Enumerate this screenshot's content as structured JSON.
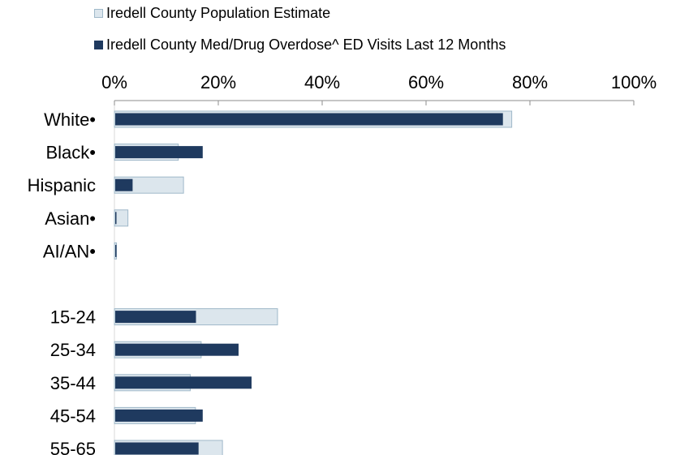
{
  "chart_data": {
    "type": "bar",
    "orientation": "horizontal",
    "title": "",
    "xlabel": "",
    "ylabel": "",
    "xlim": [
      0,
      100
    ],
    "x_ticks": [
      "0%",
      "20%",
      "40%",
      "60%",
      "80%",
      "100%"
    ],
    "x_tick_values": [
      0,
      20,
      40,
      60,
      80,
      100
    ],
    "categories": [
      "White•",
      "Black•",
      "Hispanic",
      "Asian•",
      "AI/AN•",
      "",
      "15-24",
      "25-34",
      "35-44",
      "45-54",
      "55-65"
    ],
    "legend_position": "top",
    "grid": false,
    "series": [
      {
        "name": "Iredell County Population Estimate",
        "color": "#dce6ed",
        "border": "#9fb8c9",
        "values": [
          76.5,
          12.3,
          13.3,
          2.6,
          0.4,
          null,
          31.4,
          16.7,
          14.6,
          15.6,
          20.8
        ]
      },
      {
        "name": "Iredell County Med/Drug Overdose^ ED Visits Last 12 Months",
        "color": "#1f3a5f",
        "border": "#1f3a5f",
        "values": [
          74.8,
          17.0,
          3.5,
          0.3,
          0.3,
          null,
          15.7,
          23.9,
          26.4,
          17.0,
          16.2
        ]
      }
    ]
  }
}
